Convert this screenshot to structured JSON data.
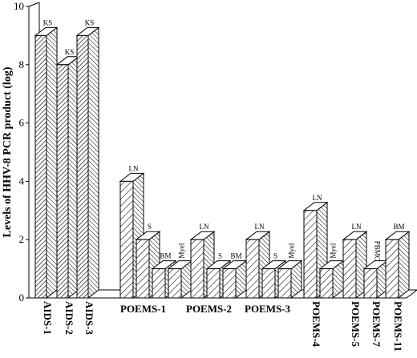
{
  "chart_data": {
    "type": "bar",
    "title": "",
    "xlabel": "",
    "ylabel": "Levels of HHV-8  PCR product (log)",
    "ylim": [
      0,
      10
    ],
    "yticks": [
      "0",
      "2",
      "4",
      "6",
      "8",
      "10"
    ],
    "grid": false,
    "style": "3d",
    "categories": [
      {
        "name": "AIDS-1",
        "bars": [
          {
            "label": "KS",
            "value": 9,
            "pattern": "dense"
          }
        ]
      },
      {
        "name": "AIDS-2",
        "bars": [
          {
            "label": "KS",
            "value": 8,
            "pattern": "dense"
          }
        ]
      },
      {
        "name": "AIDS-3",
        "bars": [
          {
            "label": "KS",
            "value": 9,
            "pattern": "dense"
          }
        ]
      },
      {
        "name": "POEMS-1",
        "bars": [
          {
            "label": "LN",
            "value": 4,
            "pattern": "sparse"
          },
          {
            "label": "S",
            "value": 2,
            "pattern": "sparse"
          },
          {
            "label": "BM",
            "value": 1,
            "pattern": "sparse"
          },
          {
            "label": "Myel",
            "value": 1,
            "pattern": "sparse"
          }
        ]
      },
      {
        "name": "POEMS-2",
        "bars": [
          {
            "label": "LN",
            "value": 2,
            "pattern": "sparse"
          },
          {
            "label": "S",
            "value": 1,
            "pattern": "sparse"
          },
          {
            "label": "BM",
            "value": 1,
            "pattern": "sparse"
          }
        ]
      },
      {
        "name": "POEMS-3",
        "bars": [
          {
            "label": "LN",
            "value": 2,
            "pattern": "sparse"
          },
          {
            "label": "S",
            "value": 1,
            "pattern": "sparse"
          },
          {
            "label": "Myel",
            "value": 1,
            "pattern": "sparse"
          }
        ]
      },
      {
        "name": "POEMS-4",
        "bars": [
          {
            "label": "LN",
            "value": 3,
            "pattern": "sparse"
          },
          {
            "label": "Myel",
            "value": 1,
            "pattern": "sparse"
          }
        ]
      },
      {
        "name": "POEMS-5",
        "bars": [
          {
            "label": "LN",
            "value": 2,
            "pattern": "sparse"
          }
        ]
      },
      {
        "name": "POEMS-7",
        "bars": [
          {
            "label": "PBMC",
            "value": 1,
            "pattern": "sparse"
          }
        ]
      },
      {
        "name": "POEMS-11",
        "bars": [
          {
            "label": "BM",
            "value": 2,
            "pattern": "sparse"
          }
        ]
      }
    ],
    "colors": {
      "stroke": "#000000",
      "face": "#ffffff"
    }
  }
}
